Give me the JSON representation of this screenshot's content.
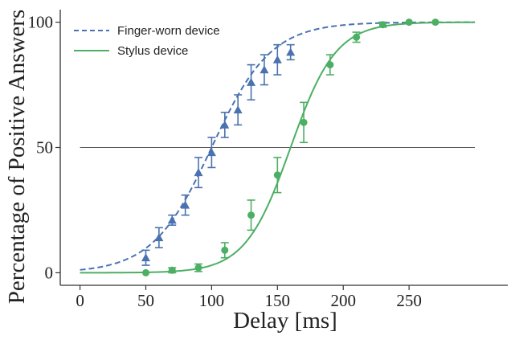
{
  "chart_data": {
    "type": "scatter",
    "xlabel": "Delay [ms]",
    "ylabel": "Percentage of Positive Answers",
    "xlim": [
      -15,
      325
    ],
    "ylim": [
      -5,
      105
    ],
    "xticks": [
      0,
      50,
      100,
      150,
      200,
      250
    ],
    "yticks": [
      0,
      50,
      100
    ],
    "legend_position": "top-left",
    "reference_line": {
      "y": 50,
      "color": "#555555"
    },
    "series": [
      {
        "name": "Finger-worn device",
        "color": "#4a72b0",
        "marker": "triangle",
        "line_style": "dashed",
        "points": [
          {
            "x": 50,
            "y": 6,
            "err": 3
          },
          {
            "x": 60,
            "y": 14,
            "err": 4
          },
          {
            "x": 70,
            "y": 21,
            "err": 2
          },
          {
            "x": 80,
            "y": 27,
            "err": 4
          },
          {
            "x": 90,
            "y": 40,
            "err": 6
          },
          {
            "x": 100,
            "y": 48,
            "err": 6
          },
          {
            "x": 110,
            "y": 59,
            "err": 5
          },
          {
            "x": 120,
            "y": 65,
            "err": 6
          },
          {
            "x": 130,
            "y": 76,
            "err": 7
          },
          {
            "x": 140,
            "y": 81,
            "err": 6
          },
          {
            "x": 150,
            "y": 85,
            "err": 6
          },
          {
            "x": 160,
            "y": 88,
            "err": 3
          }
        ],
        "fit": {
          "midpoint": 100,
          "slope": 0.0444
        }
      },
      {
        "name": "Stylus device",
        "color": "#4caf64",
        "marker": "circle",
        "line_style": "solid",
        "points": [
          {
            "x": 50,
            "y": 0,
            "err": 0
          },
          {
            "x": 70,
            "y": 1,
            "err": 1
          },
          {
            "x": 90,
            "y": 2,
            "err": 1.5
          },
          {
            "x": 110,
            "y": 9,
            "err": 3
          },
          {
            "x": 130,
            "y": 23,
            "err": 6
          },
          {
            "x": 150,
            "y": 39,
            "err": 7
          },
          {
            "x": 170,
            "y": 60,
            "err": 8
          },
          {
            "x": 190,
            "y": 83,
            "err": 4
          },
          {
            "x": 210,
            "y": 94,
            "err": 2
          },
          {
            "x": 230,
            "y": 99,
            "err": 1
          },
          {
            "x": 250,
            "y": 100,
            "err": 0
          },
          {
            "x": 270,
            "y": 100,
            "err": 0
          }
        ],
        "fit": {
          "midpoint": 160,
          "slope": 0.058
        }
      }
    ]
  }
}
